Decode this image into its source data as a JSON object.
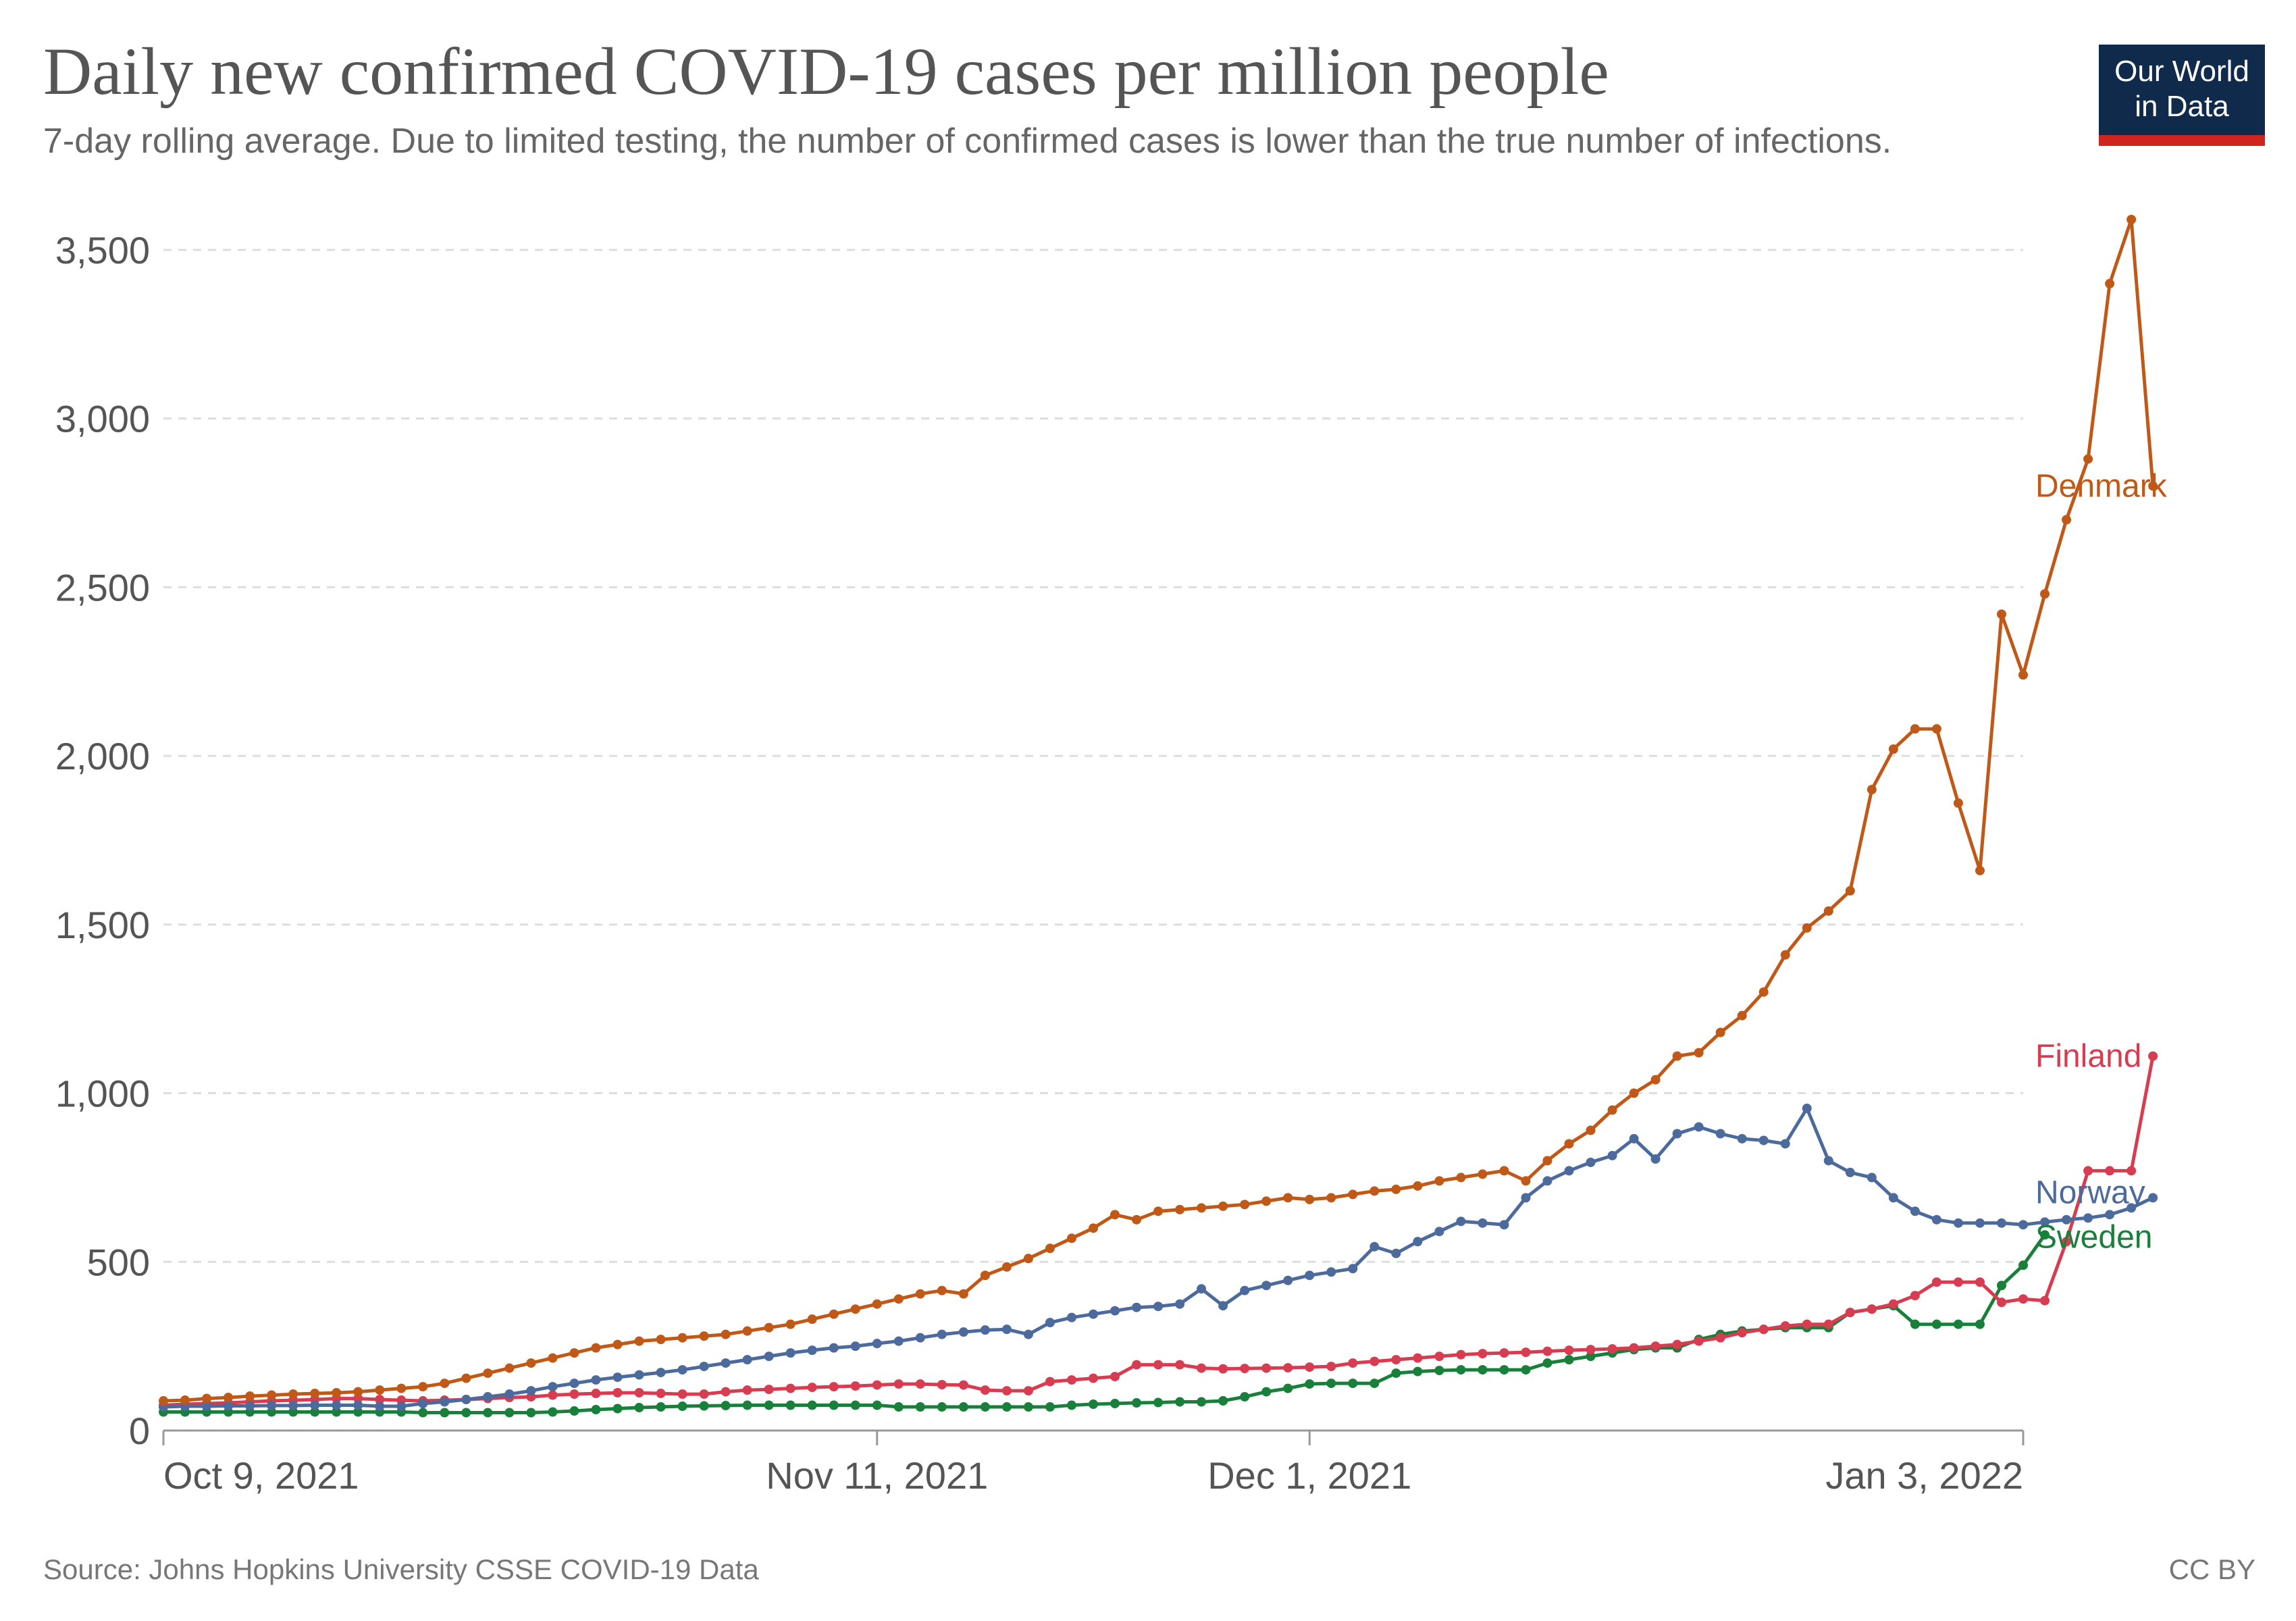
{
  "header": {
    "title": "Daily new confirmed COVID-19 cases per million people",
    "subtitle": "7-day rolling average. Due to limited testing, the number of confirmed cases is lower than the true number of infections."
  },
  "logo": {
    "line1": "Our World",
    "line2": "in Data",
    "bg_color": "#0f2a4a",
    "stripe_color": "#ce261e"
  },
  "footer": {
    "source": "Source: Johns Hopkins University CSSE COVID-19 Data",
    "license": "CC BY"
  },
  "chart_data": {
    "type": "line",
    "title": "Daily new confirmed COVID-19 cases per million people",
    "subtitle": "7-day rolling average. Due to limited testing, the number of confirmed cases is lower than the true number of infections.",
    "xlabel": "",
    "ylabel": "",
    "x_start": "2021-10-09",
    "x_end": "2022-01-03",
    "x_ticks": [
      {
        "date": "2021-10-09",
        "label": "Oct 9, 2021"
      },
      {
        "date": "2021-11-11",
        "label": "Nov 11, 2021"
      },
      {
        "date": "2021-12-01",
        "label": "Dec 1, 2021"
      },
      {
        "date": "2022-01-03",
        "label": "Jan 3, 2022"
      }
    ],
    "y_ticks": [
      {
        "value": 0,
        "label": "0"
      },
      {
        "value": 500,
        "label": "500"
      },
      {
        "value": 1000,
        "label": "1,000"
      },
      {
        "value": 1500,
        "label": "1,500"
      },
      {
        "value": 2000,
        "label": "2,000"
      },
      {
        "value": 2500,
        "label": "2,500"
      },
      {
        "value": 3000,
        "label": "3,000"
      },
      {
        "value": 3500,
        "label": "3,500"
      }
    ],
    "ylim": [
      0,
      3600
    ],
    "grid": "horizontal dashed",
    "legend": "inline labels at line ends (right)",
    "series": [
      {
        "name": "Denmark",
        "color": "#c05917",
        "values": [
          88,
          90,
          95,
          98,
          102,
          105,
          108,
          110,
          112,
          115,
          120,
          125,
          130,
          140,
          155,
          170,
          185,
          200,
          215,
          230,
          245,
          255,
          265,
          270,
          275,
          280,
          285,
          295,
          305,
          315,
          330,
          345,
          360,
          375,
          390,
          405,
          415,
          405,
          460,
          485,
          510,
          540,
          570,
          600,
          640,
          625,
          650,
          655,
          660,
          665,
          670,
          680,
          690,
          685,
          690,
          700,
          710,
          715,
          725,
          740,
          750,
          760,
          770,
          740,
          800,
          850,
          890,
          950,
          1000,
          1040,
          1110,
          1120,
          1180,
          1230,
          1300,
          1410,
          1490,
          1540,
          1600,
          1900,
          2020,
          2080,
          2080,
          1860,
          1660,
          2420,
          2240,
          2480,
          2700,
          2880,
          3400,
          3590,
          2800
        ]
      },
      {
        "name": "Finland",
        "color": "#d73c50",
        "values": [
          75,
          78,
          80,
          82,
          85,
          88,
          90,
          92,
          95,
          95,
          92,
          90,
          88,
          90,
          92,
          95,
          98,
          100,
          105,
          108,
          110,
          112,
          112,
          110,
          108,
          108,
          115,
          120,
          122,
          125,
          128,
          130,
          132,
          135,
          138,
          138,
          136,
          135,
          120,
          118,
          118,
          145,
          150,
          155,
          160,
          195,
          195,
          195,
          185,
          183,
          184,
          185,
          186,
          188,
          190,
          200,
          205,
          210,
          215,
          220,
          225,
          228,
          230,
          232,
          235,
          238,
          240,
          242,
          245,
          250,
          255,
          265,
          275,
          290,
          300,
          310,
          315,
          315,
          350,
          360,
          375,
          400,
          440,
          440,
          440,
          380,
          390,
          385,
          560,
          770,
          770,
          770,
          1110
        ]
      },
      {
        "name": "Norway",
        "color": "#4c6a9c",
        "values": [
          70,
          72,
          72,
          73,
          73,
          74,
          74,
          75,
          75,
          75,
          72,
          72,
          80,
          85,
          92,
          100,
          108,
          118,
          130,
          140,
          150,
          158,
          165,
          172,
          180,
          190,
          200,
          210,
          220,
          230,
          238,
          245,
          250,
          258,
          265,
          275,
          285,
          292,
          298,
          300,
          285,
          320,
          335,
          345,
          355,
          365,
          368,
          375,
          420,
          370,
          415,
          430,
          445,
          460,
          470,
          480,
          545,
          525,
          560,
          590,
          620,
          615,
          610,
          690,
          740,
          770,
          795,
          815,
          865,
          805,
          880,
          900,
          880,
          865,
          860,
          850,
          955,
          800,
          765,
          750,
          690,
          650,
          625,
          615,
          615,
          615,
          610,
          618,
          625,
          630,
          640,
          660,
          690
        ]
      },
      {
        "name": "Sweden",
        "color": "#18803b",
        "values": [
          55,
          55,
          55,
          55,
          55,
          55,
          55,
          55,
          55,
          55,
          55,
          55,
          53,
          53,
          53,
          53,
          53,
          53,
          55,
          58,
          62,
          65,
          68,
          70,
          72,
          73,
          74,
          75,
          75,
          75,
          75,
          75,
          75,
          75,
          70,
          70,
          70,
          70,
          70,
          70,
          70,
          70,
          75,
          78,
          80,
          82,
          83,
          85,
          85,
          88,
          100,
          115,
          125,
          138,
          140,
          140,
          140,
          170,
          175,
          178,
          180,
          180,
          180,
          180,
          200,
          210,
          220,
          230,
          240,
          245,
          245,
          270,
          285,
          295,
          300,
          305,
          305,
          305,
          350,
          360,
          370,
          315,
          315,
          315,
          315,
          430,
          490,
          580,
          null,
          null,
          null,
          null,
          null
        ]
      }
    ],
    "end_labels": [
      {
        "series": "Denmark",
        "text": "Denmark"
      },
      {
        "series": "Finland",
        "text": "Finland"
      },
      {
        "series": "Norway",
        "text": "Norway"
      },
      {
        "series": "Sweden",
        "text": "Sweden"
      }
    ]
  }
}
